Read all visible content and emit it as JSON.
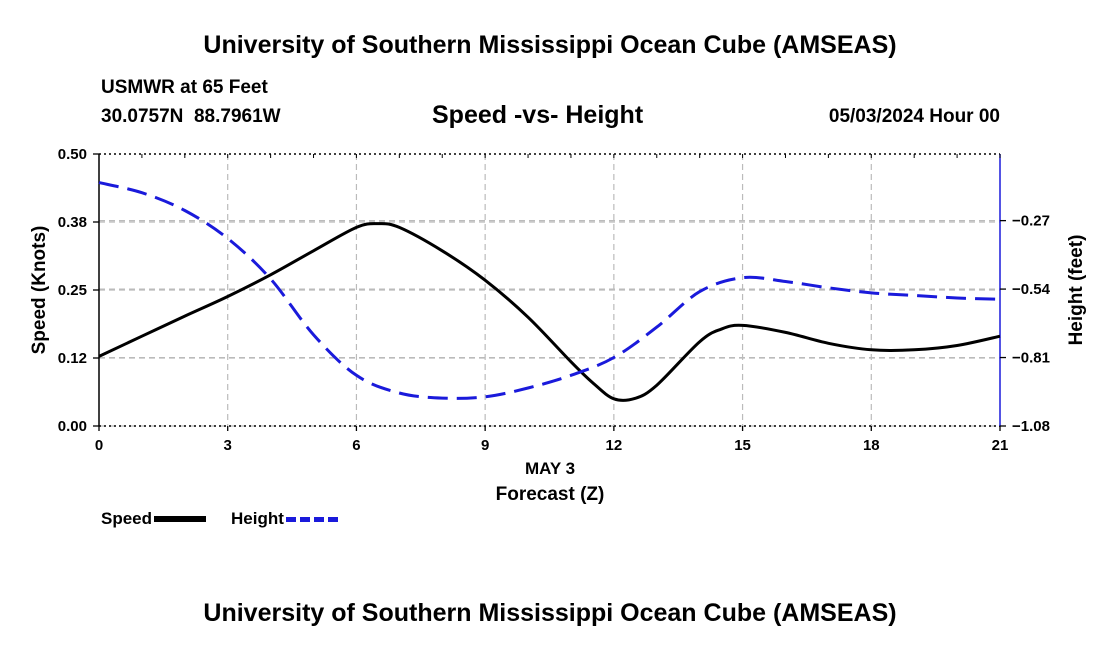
{
  "header": {
    "title": "University of Southern Mississippi Ocean Cube (AMSEAS)",
    "station": "USMWR at 65 Feet",
    "coords": "30.0757N  88.7961W",
    "subtitle": "Speed -vs- Height",
    "datetime": "05/03/2024 Hour 00"
  },
  "footer": {
    "title": "University of Southern Mississippi Ocean Cube (AMSEAS)"
  },
  "legend": {
    "speed_label": "Speed",
    "height_label": "Height"
  },
  "colors": {
    "speed": "#000000",
    "height": "#1a1adb",
    "grid": "#bbbbbb"
  },
  "chart_data": {
    "type": "line",
    "title": "Speed -vs- Height",
    "xlabel_date": "MAY 3",
    "xlabel": "Forecast (Z)",
    "ylabel_left": "Speed (Knots)",
    "ylabel_right": "Height (feet)",
    "xlim": [
      0,
      21
    ],
    "ylim_left": [
      0,
      0.5
    ],
    "ylim_right": [
      -1.08,
      -0.0072
    ],
    "x_ticks": [
      0,
      3,
      6,
      9,
      12,
      15,
      18,
      21
    ],
    "x_tick_labels": [
      "0",
      "3",
      "6",
      "9",
      "12",
      "15",
      "18",
      "21"
    ],
    "y_left_ticks": [
      0,
      0.125,
      0.25,
      0.375,
      0.5
    ],
    "y_left_tick_labels": [
      "0.00",
      "0.12",
      "0.25",
      "0.38",
      "0.50"
    ],
    "y_right_ticks": [
      -1.08,
      -0.81,
      -0.54,
      -0.27
    ],
    "y_right_tick_labels": [
      "−1.08",
      "−0.81",
      "−0.54",
      "−0.27"
    ],
    "series": [
      {
        "name": "Speed",
        "axis": "left",
        "style": "solid",
        "x": [
          0,
          1,
          2,
          3,
          4,
          5,
          6,
          6.5,
          7,
          8,
          9,
          10,
          11,
          11.5,
          12,
          12.5,
          13,
          14,
          14.5,
          15,
          16,
          17,
          18,
          19,
          20,
          21
        ],
        "y": [
          0.128,
          0.165,
          0.202,
          0.238,
          0.278,
          0.322,
          0.365,
          0.372,
          0.365,
          0.322,
          0.268,
          0.2,
          0.118,
          0.08,
          0.05,
          0.051,
          0.075,
          0.155,
          0.178,
          0.185,
          0.172,
          0.152,
          0.14,
          0.14,
          0.148,
          0.165
        ]
      },
      {
        "name": "Height",
        "axis": "right",
        "style": "dashed",
        "x": [
          0,
          1,
          2,
          3,
          4,
          5,
          6,
          7,
          8,
          9,
          10,
          11,
          12,
          13,
          14,
          15,
          16,
          17,
          18,
          19,
          20,
          21
        ],
        "y": [
          -0.12,
          -0.16,
          -0.23,
          -0.34,
          -0.5,
          -0.72,
          -0.88,
          -0.95,
          -0.97,
          -0.965,
          -0.93,
          -0.88,
          -0.81,
          -0.69,
          -0.55,
          -0.495,
          -0.51,
          -0.535,
          -0.555,
          -0.565,
          -0.575,
          -0.58
        ]
      }
    ]
  }
}
